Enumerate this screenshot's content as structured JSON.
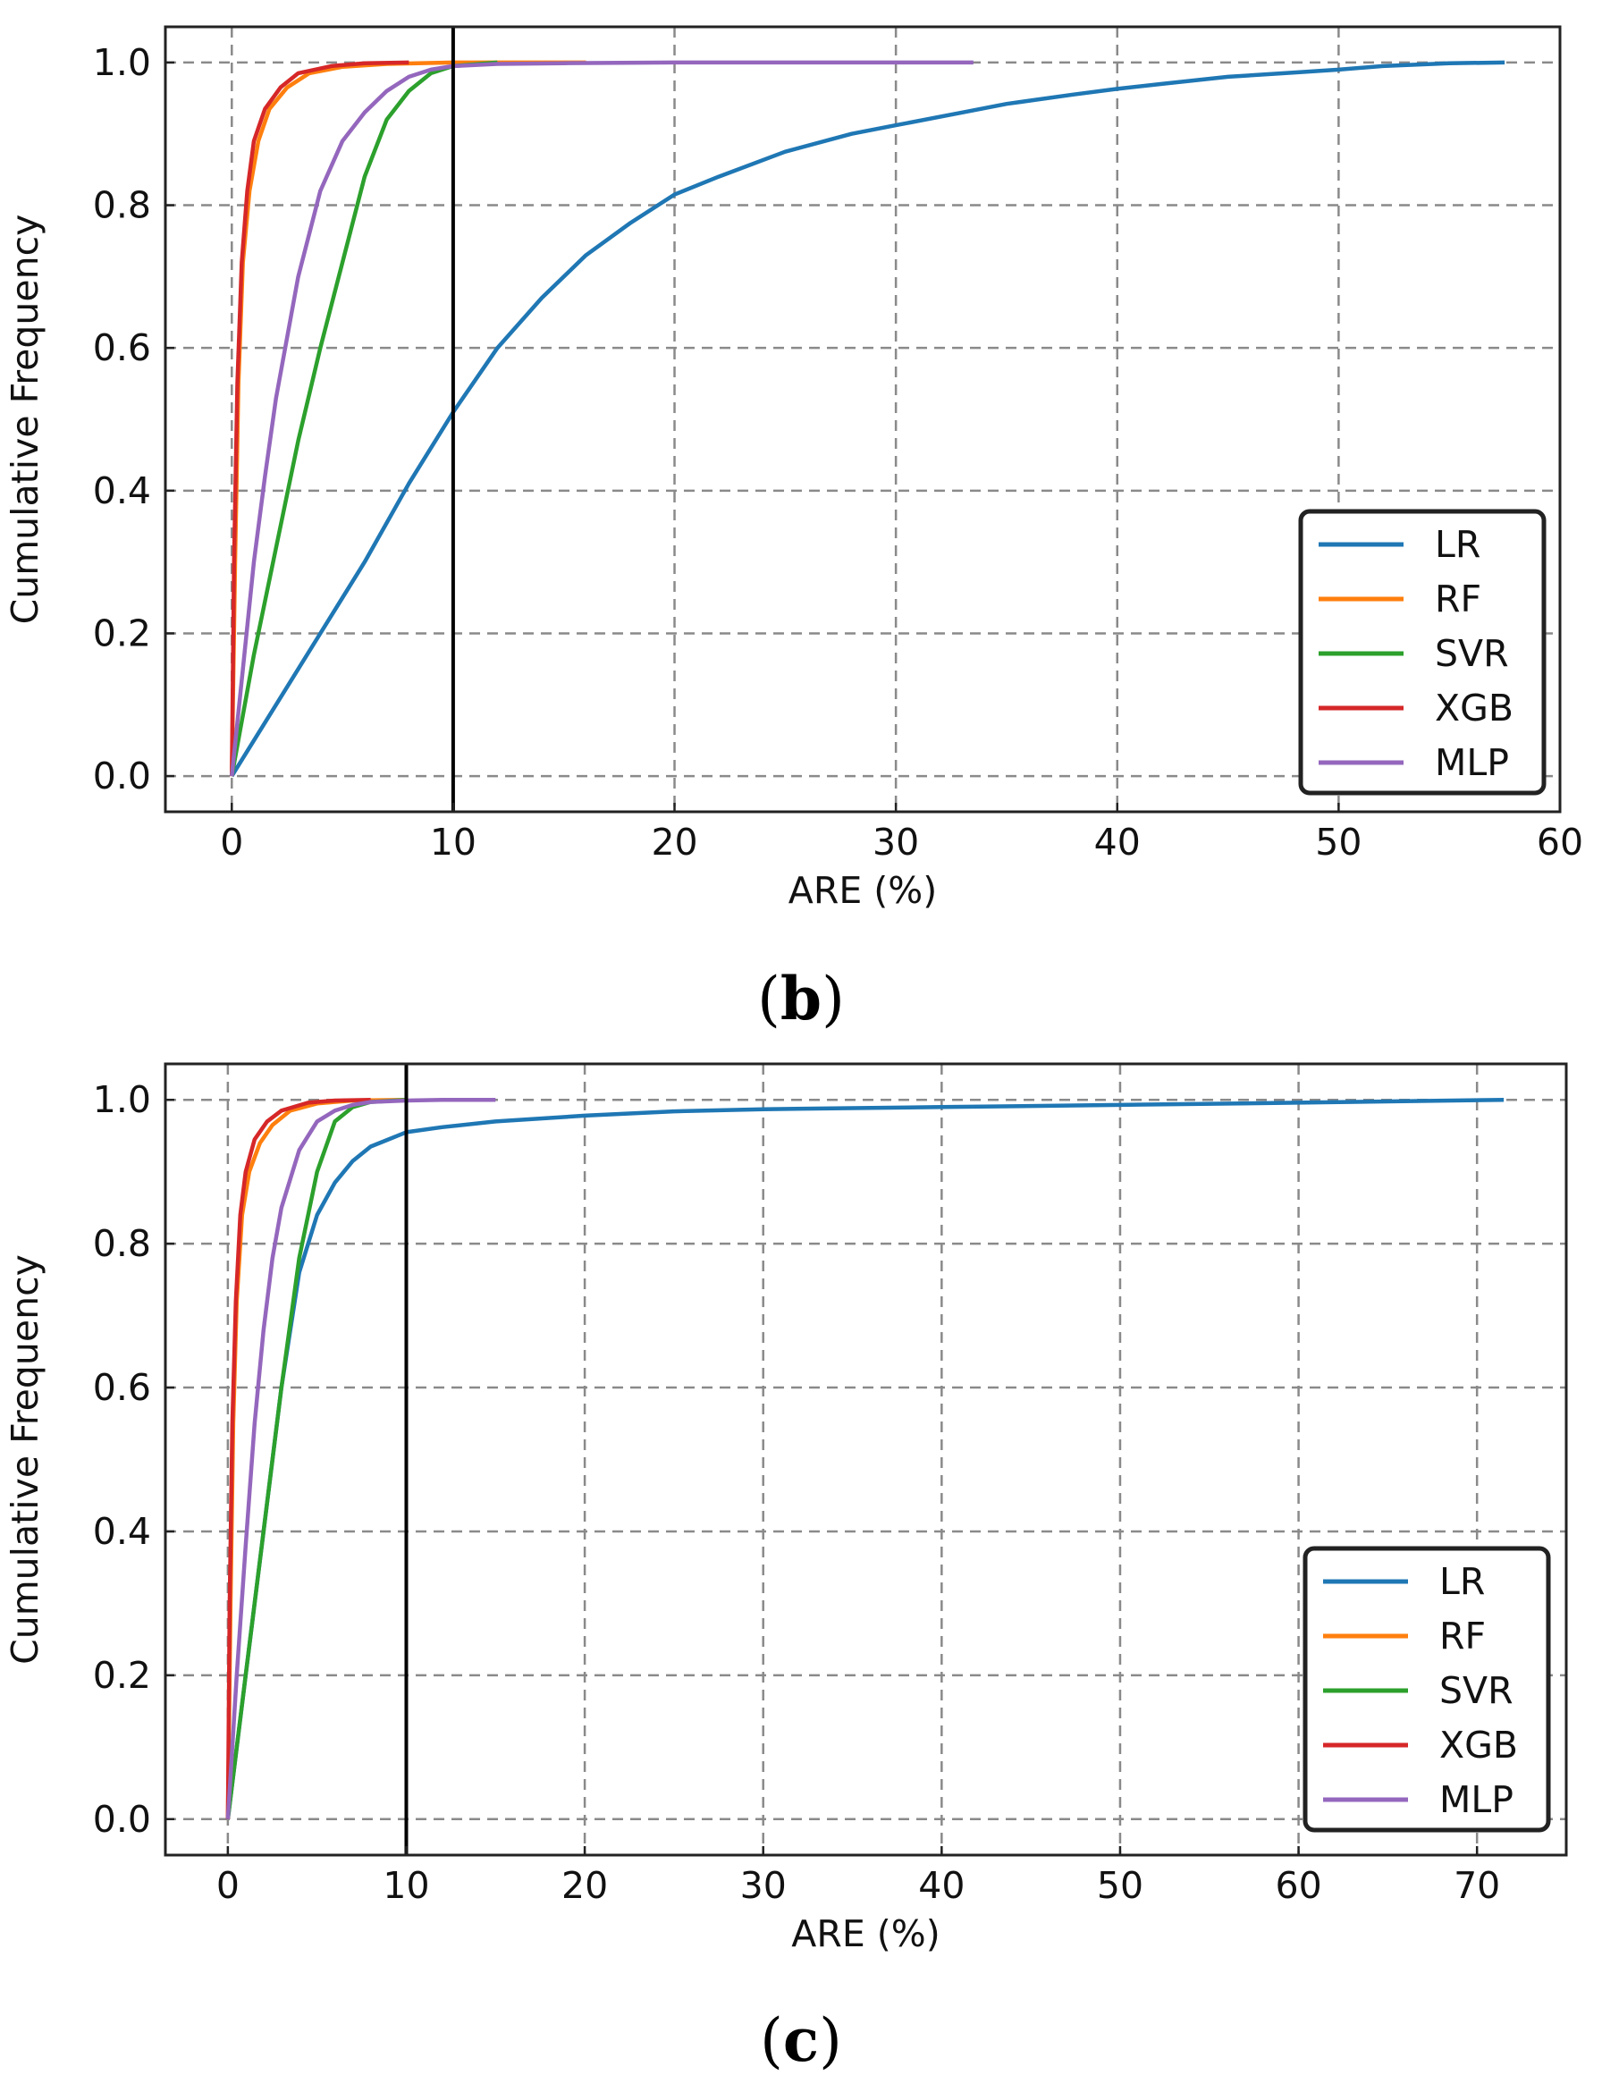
{
  "chart_data": [
    {
      "type": "line",
      "panel_label": "b",
      "xlabel": "ARE (%)",
      "ylabel": "Cumulative Frequency",
      "xlim": [
        -3,
        60
      ],
      "ylim": [
        -0.05,
        1.05
      ],
      "xticks": [
        "0",
        "10",
        "20",
        "30",
        "40",
        "50",
        "60"
      ],
      "xtick_values": [
        0,
        10,
        20,
        30,
        40,
        50,
        60
      ],
      "yticks": [
        "0.0",
        "0.2",
        "0.4",
        "0.6",
        "0.8",
        "1.0"
      ],
      "ytick_values": [
        0,
        0.2,
        0.4,
        0.6,
        0.8,
        1.0
      ],
      "grid": true,
      "vertical_line_x": 10,
      "legend_position": "lower-right",
      "series": [
        {
          "name": "LR",
          "color": "#1f77b4",
          "x": [
            0,
            2,
            4,
            6,
            8,
            10,
            12,
            14,
            16,
            18,
            20,
            22,
            25,
            28,
            30,
            33,
            35,
            38,
            40,
            42,
            45,
            48,
            50,
            52,
            55,
            57.5
          ],
          "y": [
            0,
            0.1,
            0.2,
            0.3,
            0.41,
            0.51,
            0.6,
            0.67,
            0.73,
            0.775,
            0.815,
            0.84,
            0.875,
            0.9,
            0.912,
            0.93,
            0.942,
            0.955,
            0.963,
            0.97,
            0.98,
            0.986,
            0.99,
            0.995,
            0.999,
            1.0
          ]
        },
        {
          "name": "RF",
          "color": "#ff7f0e",
          "x": [
            0,
            0.15,
            0.3,
            0.5,
            0.8,
            1.2,
            1.7,
            2.5,
            3.5,
            5,
            7,
            10,
            16
          ],
          "y": [
            0,
            0.3,
            0.55,
            0.72,
            0.82,
            0.89,
            0.935,
            0.965,
            0.985,
            0.994,
            0.998,
            1.0,
            1.0
          ]
        },
        {
          "name": "SVR",
          "color": "#2ca02c",
          "x": [
            0,
            1,
            2,
            3,
            4,
            5,
            6,
            7,
            8,
            9,
            10,
            12
          ],
          "y": [
            0,
            0.17,
            0.32,
            0.47,
            0.6,
            0.72,
            0.84,
            0.92,
            0.96,
            0.985,
            0.995,
            1.0
          ]
        },
        {
          "name": "XGB",
          "color": "#d62728",
          "x": [
            0,
            0.1,
            0.25,
            0.45,
            0.7,
            1.0,
            1.5,
            2.2,
            3,
            4.5,
            6,
            8
          ],
          "y": [
            0,
            0.3,
            0.55,
            0.72,
            0.82,
            0.89,
            0.935,
            0.965,
            0.985,
            0.995,
            0.999,
            1.0
          ]
        },
        {
          "name": "MLP",
          "color": "#9467bd",
          "x": [
            0,
            0.5,
            1,
            1.5,
            2,
            3,
            4,
            5,
            6,
            7,
            8,
            9,
            10,
            12,
            15,
            20,
            25,
            30,
            33.5
          ],
          "y": [
            0,
            0.15,
            0.3,
            0.42,
            0.53,
            0.7,
            0.82,
            0.89,
            0.93,
            0.96,
            0.98,
            0.99,
            0.995,
            0.998,
            0.999,
            1.0,
            1.0,
            1.0,
            1.0
          ]
        }
      ]
    },
    {
      "type": "line",
      "panel_label": "c",
      "xlabel": "ARE (%)",
      "ylabel": "Cumulative Frequency",
      "xlim": [
        -3.5,
        75
      ],
      "ylim": [
        -0.05,
        1.05
      ],
      "xticks": [
        "0",
        "10",
        "20",
        "30",
        "40",
        "50",
        "60",
        "70"
      ],
      "xtick_values": [
        0,
        10,
        20,
        30,
        40,
        50,
        60,
        70
      ],
      "yticks": [
        "0.0",
        "0.2",
        "0.4",
        "0.6",
        "0.8",
        "1.0"
      ],
      "ytick_values": [
        0,
        0.2,
        0.4,
        0.6,
        0.8,
        1.0
      ],
      "grid": true,
      "vertical_line_x": 10,
      "legend_position": "lower-right",
      "series": [
        {
          "name": "LR",
          "color": "#1f77b4",
          "x": [
            0,
            1,
            2,
            3,
            4,
            5,
            6,
            7,
            8,
            9,
            10,
            12,
            15,
            20,
            25,
            30,
            40,
            50,
            60,
            71.5
          ],
          "y": [
            0,
            0.2,
            0.4,
            0.6,
            0.76,
            0.84,
            0.885,
            0.915,
            0.935,
            0.945,
            0.955,
            0.962,
            0.97,
            0.978,
            0.984,
            0.987,
            0.99,
            0.993,
            0.996,
            1.0
          ]
        },
        {
          "name": "RF",
          "color": "#ff7f0e",
          "x": [
            0,
            0.15,
            0.3,
            0.5,
            0.8,
            1.2,
            1.8,
            2.5,
            3.5,
            5,
            7,
            10
          ],
          "y": [
            0,
            0.3,
            0.55,
            0.72,
            0.84,
            0.9,
            0.94,
            0.965,
            0.985,
            0.995,
            0.999,
            1.0
          ]
        },
        {
          "name": "SVR",
          "color": "#2ca02c",
          "x": [
            0,
            1,
            2,
            3,
            4,
            5,
            6,
            7,
            8,
            10
          ],
          "y": [
            0,
            0.2,
            0.4,
            0.6,
            0.78,
            0.9,
            0.97,
            0.99,
            0.997,
            1.0
          ]
        },
        {
          "name": "XGB",
          "color": "#d62728",
          "x": [
            0,
            0.1,
            0.25,
            0.45,
            0.7,
            1.0,
            1.5,
            2.2,
            3,
            4.5,
            6,
            8
          ],
          "y": [
            0,
            0.3,
            0.55,
            0.72,
            0.84,
            0.9,
            0.945,
            0.97,
            0.985,
            0.996,
            0.999,
            1.0
          ]
        },
        {
          "name": "MLP",
          "color": "#9467bd",
          "x": [
            0,
            0.5,
            1,
            1.5,
            2,
            2.5,
            3,
            4,
            5,
            6,
            7,
            8,
            10,
            12,
            15
          ],
          "y": [
            0,
            0.2,
            0.38,
            0.55,
            0.68,
            0.78,
            0.85,
            0.93,
            0.97,
            0.985,
            0.993,
            0.997,
            0.999,
            1.0,
            1.0
          ]
        }
      ]
    }
  ]
}
